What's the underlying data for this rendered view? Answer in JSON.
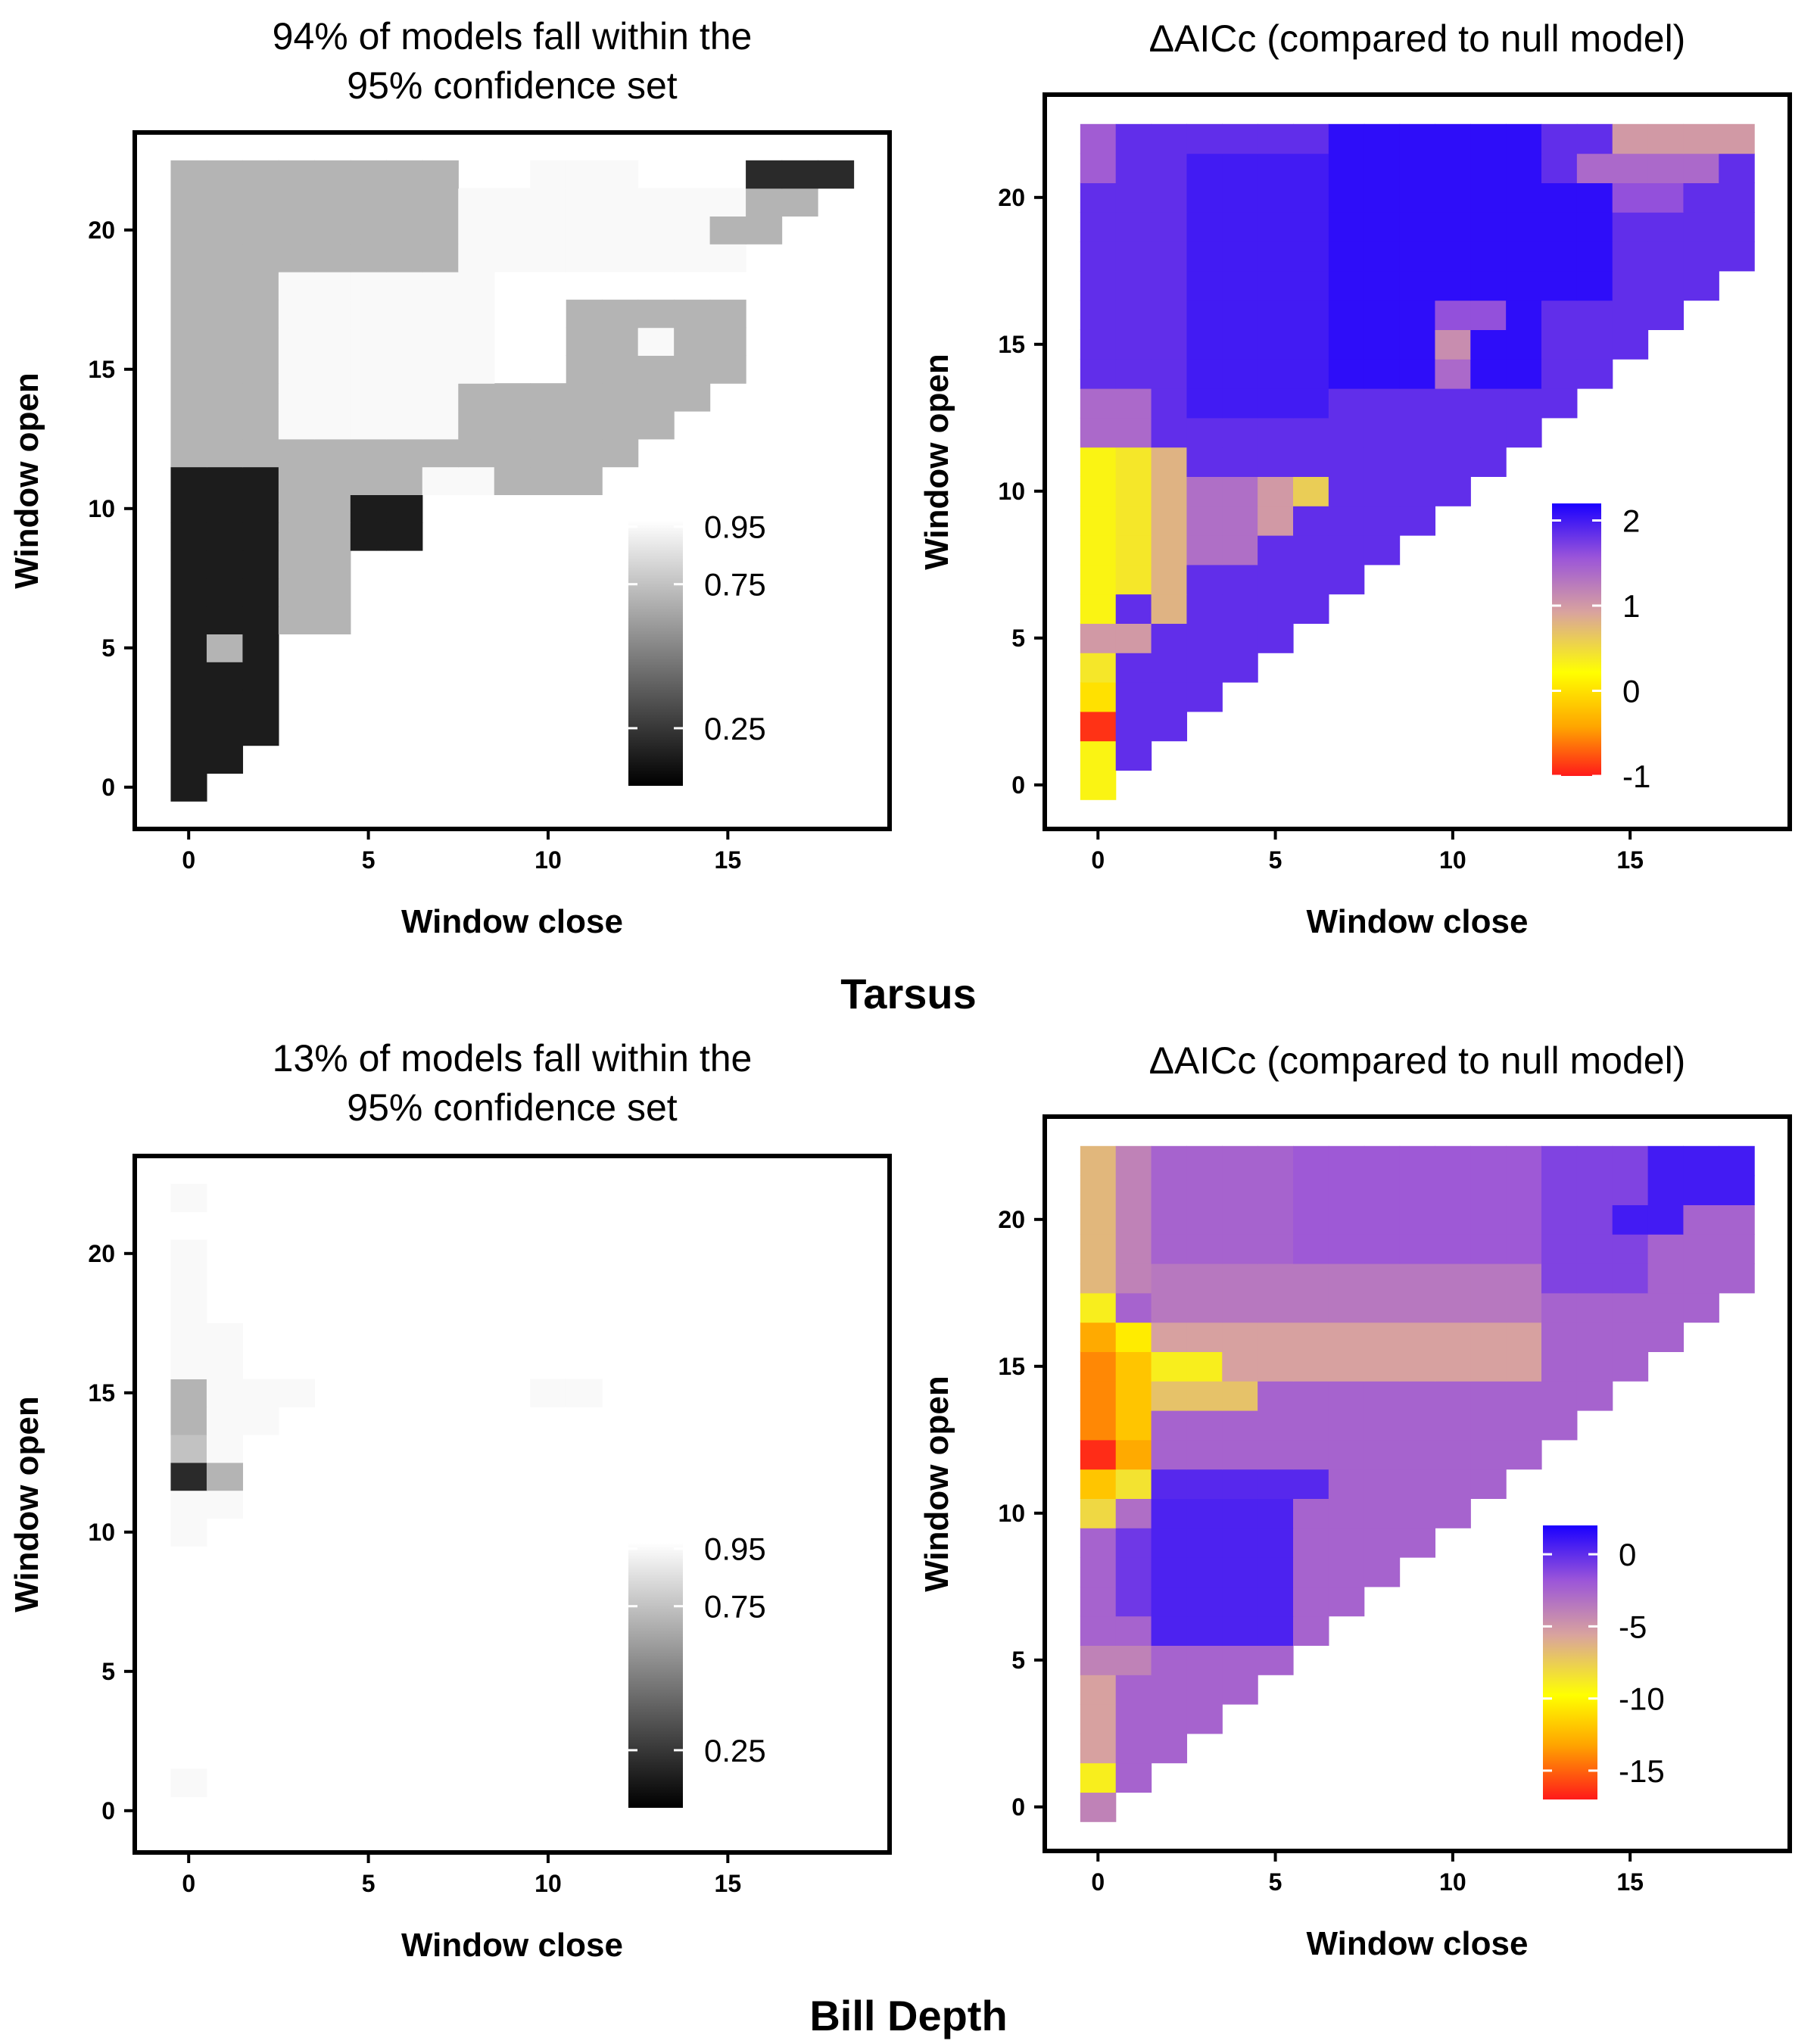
{
  "figure": {
    "rows": [
      {
        "label": "Tarsus"
      },
      {
        "label": "Bill Depth"
      }
    ]
  },
  "chart_data": [
    {
      "type": "heatmap",
      "title": "94% of models fall within the\n95% confidence set",
      "xlabel": "Window close",
      "ylabel": "Window open",
      "x_ticks": [
        0,
        5,
        10,
        15
      ],
      "y_ticks": [
        0,
        5,
        10,
        15,
        20
      ],
      "xlim": [
        -1.5,
        19.5
      ],
      "ylim": [
        -1.5,
        23.5
      ],
      "color_scale": {
        "kind": "gray",
        "stops": [
          [
            "#000000",
            0
          ],
          [
            "#ffffff",
            1
          ]
        ],
        "limits": [
          0.05,
          0.97
        ]
      },
      "legend": {
        "position": "bottom-right",
        "ticks": [
          "0.95",
          "0.75",
          "0.25"
        ],
        "tick_values": [
          0.95,
          0.75,
          0.25
        ]
      },
      "value_rules": [
        {
          "o": [
            11,
            22
          ],
          "c": [
            0,
            2
          ],
          "v": 0.7
        },
        {
          "o": [
            11,
            18
          ],
          "c": [
            3,
            8
          ],
          "v": 0.95
        },
        {
          "o": [
            19,
            22
          ],
          "c": [
            3,
            7
          ],
          "v": 0.7
        },
        {
          "o": [
            19,
            21
          ],
          "c": [
            8,
            9
          ],
          "v": 0.95
        },
        {
          "o": [
            19,
            21
          ],
          "c": [
            10,
            15
          ],
          "v": 0.95
        },
        {
          "o": [
            22,
            22
          ],
          "c": [
            10,
            12
          ],
          "v": 0.95
        },
        {
          "o": [
            11,
            14
          ],
          "c": [
            8,
            15
          ],
          "v": 0.7
        },
        {
          "o": [
            15,
            17
          ],
          "c": [
            11,
            15
          ],
          "v": 0.7
        },
        {
          "o": [
            11,
            12
          ],
          "c": [
            3,
            7
          ],
          "v": 0.7
        },
        {
          "o": [
            0,
            11
          ],
          "c": [
            0,
            2
          ],
          "v": 0.15
        },
        {
          "o": [
            6,
            10
          ],
          "c": [
            3,
            4
          ],
          "v": 0.7
        },
        {
          "o": [
            9,
            10
          ],
          "c": [
            5,
            6
          ],
          "v": 0.15
        },
        {
          "o": [
            16,
            16
          ],
          "c": [
            13,
            13
          ],
          "v": 0.95
        },
        {
          "o": [
            22,
            22
          ],
          "c": [
            16,
            18
          ],
          "v": 0.2
        },
        {
          "o": [
            21,
            21
          ],
          "c": [
            16,
            17
          ],
          "v": 0.7
        },
        {
          "o": [
            20,
            20
          ],
          "c": [
            15,
            16
          ],
          "v": 0.7
        },
        {
          "o": [
            5,
            5
          ],
          "c": [
            1,
            1
          ],
          "v": 0.7
        },
        {
          "o": [
            11,
            11
          ],
          "c": [
            7,
            8
          ],
          "v": 0.95
        }
      ]
    },
    {
      "type": "heatmap",
      "title": "ΔAICc (compared to null model)",
      "xlabel": "Window close",
      "ylabel": "Window open",
      "x_ticks": [
        0,
        5,
        10,
        15
      ],
      "y_ticks": [
        0,
        5,
        10,
        15,
        20
      ],
      "xlim": [
        -1.5,
        19.5
      ],
      "ylim": [
        -1.5,
        23.5
      ],
      "color_scale": {
        "kind": "gradient",
        "stops": [
          [
            "#ff1a1a",
            0
          ],
          [
            "#ffa500",
            0.18
          ],
          [
            "#ffff00",
            0.38
          ],
          [
            "#d9a39e",
            0.6
          ],
          [
            "#9b55d9",
            0.8
          ],
          [
            "#1a00ff",
            1
          ]
        ],
        "limits": [
          -1,
          2.2
        ]
      },
      "legend": {
        "position": "bottom-right",
        "ticks": [
          "2",
          "1",
          "0",
          "-1"
        ],
        "tick_values": [
          2,
          1,
          0,
          -1
        ]
      },
      "value_rules": [
        {
          "o": [
            0,
            22
          ],
          "c": [
            0,
            22
          ],
          "v": 1.85
        },
        {
          "o": [
            13,
            21
          ],
          "c": [
            3,
            6
          ],
          "v": 2.0
        },
        {
          "o": [
            14,
            22
          ],
          "c": [
            7,
            12
          ],
          "v": 2.1
        },
        {
          "o": [
            17,
            20
          ],
          "c": [
            13,
            14
          ],
          "v": 2.1
        },
        {
          "o": [
            0,
            11
          ],
          "c": [
            0,
            0
          ],
          "v": 0.3
        },
        {
          "o": [
            7,
            11
          ],
          "c": [
            1,
            1
          ],
          "v": 0.4
        },
        {
          "o": [
            6,
            11
          ],
          "c": [
            2,
            2
          ],
          "v": 0.8
        },
        {
          "o": [
            8,
            10
          ],
          "c": [
            3,
            4
          ],
          "v": 1.35
        },
        {
          "o": [
            9,
            10
          ],
          "c": [
            5,
            5
          ],
          "v": 1.0
        },
        {
          "o": [
            10,
            10
          ],
          "c": [
            6,
            6
          ],
          "v": 0.6
        },
        {
          "o": [
            4,
            4
          ],
          "c": [
            0,
            0
          ],
          "v": 0.4
        },
        {
          "o": [
            3,
            3
          ],
          "c": [
            0,
            0
          ],
          "v": 0.0
        },
        {
          "o": [
            2,
            2
          ],
          "c": [
            0,
            0
          ],
          "v": -0.9
        },
        {
          "o": [
            5,
            5
          ],
          "c": [
            0,
            1
          ],
          "v": 1.0
        },
        {
          "o": [
            12,
            13
          ],
          "c": [
            0,
            1
          ],
          "v": 1.4
        },
        {
          "o": [
            15,
            15
          ],
          "c": [
            10,
            10
          ],
          "v": 1.1
        },
        {
          "o": [
            14,
            14
          ],
          "c": [
            10,
            10
          ],
          "v": 1.4
        },
        {
          "o": [
            16,
            16
          ],
          "c": [
            10,
            11
          ],
          "v": 1.6
        },
        {
          "o": [
            22,
            22
          ],
          "c": [
            15,
            18
          ],
          "v": 1.0
        },
        {
          "o": [
            21,
            21
          ],
          "c": [
            14,
            17
          ],
          "v": 1.4
        },
        {
          "o": [
            20,
            20
          ],
          "c": [
            15,
            16
          ],
          "v": 1.6
        },
        {
          "o": [
            21,
            22
          ],
          "c": [
            0,
            0
          ],
          "v": 1.5
        }
      ]
    },
    {
      "type": "heatmap",
      "title": "13% of models fall within the\n95% confidence set",
      "xlabel": "Window close",
      "ylabel": "Window open",
      "x_ticks": [
        0,
        5,
        10,
        15
      ],
      "y_ticks": [
        0,
        5,
        10,
        15,
        20
      ],
      "xlim": [
        -1.5,
        19.5
      ],
      "ylim": [
        -1.5,
        23.5
      ],
      "color_scale": {
        "kind": "gray",
        "stops": [
          [
            "#000000",
            0
          ],
          [
            "#ffffff",
            1
          ]
        ],
        "limits": [
          0.05,
          0.97
        ]
      },
      "legend": {
        "position": "bottom-right",
        "ticks": [
          "0.95",
          "0.75",
          "0.25"
        ],
        "tick_values": [
          0.95,
          0.75,
          0.25
        ]
      },
      "value_rules": [
        {
          "o": [
            22,
            22
          ],
          "c": [
            0,
            0
          ],
          "v": 0.95
        },
        {
          "o": [
            16,
            20
          ],
          "c": [
            0,
            0
          ],
          "v": 0.95
        },
        {
          "o": [
            15,
            17
          ],
          "c": [
            1,
            1
          ],
          "v": 0.95
        },
        {
          "o": [
            14,
            15
          ],
          "c": [
            0,
            0
          ],
          "v": 0.7
        },
        {
          "o": [
            13,
            13
          ],
          "c": [
            0,
            0
          ],
          "v": 0.75
        },
        {
          "o": [
            15,
            15
          ],
          "c": [
            2,
            3
          ],
          "v": 0.95
        },
        {
          "o": [
            14,
            14
          ],
          "c": [
            2,
            2
          ],
          "v": 0.95
        },
        {
          "o": [
            13,
            14
          ],
          "c": [
            1,
            1
          ],
          "v": 0.95
        },
        {
          "o": [
            12,
            12
          ],
          "c": [
            0,
            0
          ],
          "v": 0.2
        },
        {
          "o": [
            12,
            12
          ],
          "c": [
            1,
            1
          ],
          "v": 0.7
        },
        {
          "o": [
            10,
            11
          ],
          "c": [
            0,
            0
          ],
          "v": 0.95
        },
        {
          "o": [
            11,
            11
          ],
          "c": [
            1,
            1
          ],
          "v": 0.95
        },
        {
          "o": [
            15,
            15
          ],
          "c": [
            10,
            11
          ],
          "v": 0.95
        },
        {
          "o": [
            1,
            1
          ],
          "c": [
            0,
            0
          ],
          "v": 0.95
        }
      ]
    },
    {
      "type": "heatmap",
      "title": "ΔAICc (compared to null model)",
      "xlabel": "Window close",
      "ylabel": "Window open",
      "x_ticks": [
        0,
        5,
        10,
        15
      ],
      "y_ticks": [
        0,
        5,
        10,
        15,
        20
      ],
      "xlim": [
        -1.5,
        19.5
      ],
      "ylim": [
        -1.5,
        23.5
      ],
      "color_scale": {
        "kind": "gradient",
        "stops": [
          [
            "#ff1a1a",
            0
          ],
          [
            "#ffa500",
            0.2
          ],
          [
            "#ffff00",
            0.38
          ],
          [
            "#d9a39e",
            0.6
          ],
          [
            "#9b55d9",
            0.8
          ],
          [
            "#1a00ff",
            1
          ]
        ],
        "limits": [
          -17,
          2
        ]
      },
      "legend": {
        "position": "bottom-right",
        "ticks": [
          "0",
          "-5",
          "-10",
          "-15"
        ],
        "tick_values": [
          0,
          -5,
          -10,
          -15
        ]
      },
      "value_rules": [
        {
          "o": [
            0,
            22
          ],
          "c": [
            0,
            22
          ],
          "v": -2.5
        },
        {
          "o": [
            19,
            22
          ],
          "c": [
            6,
            12
          ],
          "v": -2.0
        },
        {
          "o": [
            18,
            22
          ],
          "c": [
            13,
            15
          ],
          "v": -1.0
        },
        {
          "o": [
            21,
            22
          ],
          "c": [
            16,
            18
          ],
          "v": 0.8
        },
        {
          "o": [
            20,
            20
          ],
          "c": [
            15,
            16
          ],
          "v": 0.8
        },
        {
          "o": [
            16,
            18
          ],
          "c": [
            2,
            12
          ],
          "v": -3.5
        },
        {
          "o": [
            15,
            16
          ],
          "c": [
            2,
            12
          ],
          "v": -5.5
        },
        {
          "o": [
            15,
            15
          ],
          "c": [
            2,
            3
          ],
          "v": -9.0
        },
        {
          "o": [
            14,
            14
          ],
          "c": [
            2,
            4
          ],
          "v": -7.0
        },
        {
          "o": [
            12,
            14
          ],
          "c": [
            5,
            8
          ],
          "v": -2.5
        },
        {
          "o": [
            11,
            11
          ],
          "c": [
            2,
            6
          ],
          "v": 0.2
        },
        {
          "o": [
            6,
            10
          ],
          "c": [
            2,
            5
          ],
          "v": 0.5
        },
        {
          "o": [
            7,
            10
          ],
          "c": [
            1,
            1
          ],
          "v": -0.5
        },
        {
          "o": [
            18,
            22
          ],
          "c": [
            0,
            0
          ],
          "v": -6.5
        },
        {
          "o": [
            17,
            17
          ],
          "c": [
            0,
            0
          ],
          "v": -9.0
        },
        {
          "o": [
            18,
            22
          ],
          "c": [
            1,
            1
          ],
          "v": -4.0
        },
        {
          "o": [
            16,
            16
          ],
          "c": [
            0,
            0
          ],
          "v": -13.0
        },
        {
          "o": [
            16,
            16
          ],
          "c": [
            1,
            1
          ],
          "v": -10.5
        },
        {
          "o": [
            13,
            15
          ],
          "c": [
            0,
            0
          ],
          "v": -14.0
        },
        {
          "o": [
            13,
            15
          ],
          "c": [
            1,
            1
          ],
          "v": -12.0
        },
        {
          "o": [
            12,
            12
          ],
          "c": [
            0,
            0
          ],
          "v": -16.5
        },
        {
          "o": [
            12,
            12
          ],
          "c": [
            1,
            1
          ],
          "v": -13.0
        },
        {
          "o": [
            11,
            11
          ],
          "c": [
            0,
            0
          ],
          "v": -12.0
        },
        {
          "o": [
            11,
            11
          ],
          "c": [
            1,
            1
          ],
          "v": -8.5
        },
        {
          "o": [
            10,
            10
          ],
          "c": [
            0,
            0
          ],
          "v": -8.0
        },
        {
          "o": [
            10,
            10
          ],
          "c": [
            1,
            1
          ],
          "v": -3.0
        },
        {
          "o": [
            6,
            9
          ],
          "c": [
            0,
            0
          ],
          "v": -2.5
        },
        {
          "o": [
            5,
            5
          ],
          "c": [
            0,
            1
          ],
          "v": -4.0
        },
        {
          "o": [
            2,
            4
          ],
          "c": [
            0,
            0
          ],
          "v": -5.5
        },
        {
          "o": [
            1,
            1
          ],
          "c": [
            0,
            0
          ],
          "v": -9.0
        },
        {
          "o": [
            0,
            0
          ],
          "c": [
            0,
            0
          ],
          "v": -4.0
        }
      ]
    }
  ]
}
